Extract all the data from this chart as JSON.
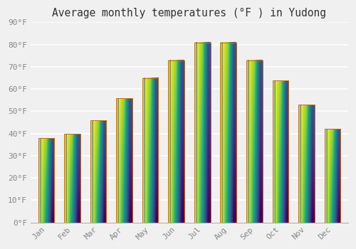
{
  "title": "Average monthly temperatures (°F ) in Yudong",
  "months": [
    "Jan",
    "Feb",
    "Mar",
    "Apr",
    "May",
    "Jun",
    "Jul",
    "Aug",
    "Sep",
    "Oct",
    "Nov",
    "Dec"
  ],
  "values": [
    38,
    40,
    46,
    56,
    65,
    73,
    81,
    81,
    73,
    64,
    53,
    42
  ],
  "ylim": [
    0,
    90
  ],
  "yticks": [
    0,
    10,
    20,
    30,
    40,
    50,
    60,
    70,
    80,
    90
  ],
  "ytick_labels": [
    "0°F",
    "10°F",
    "20°F",
    "30°F",
    "40°F",
    "50°F",
    "60°F",
    "70°F",
    "80°F",
    "90°F"
  ],
  "background_color": "#f0f0f0",
  "grid_color": "#ffffff",
  "bar_color_bottom": "#FFD040",
  "bar_color_mid": "#FFA800",
  "bar_color_top": "#F08000",
  "bar_edge_color": "#C87000",
  "bar_highlight": "#FFE860",
  "title_fontsize": 10.5,
  "tick_fontsize": 8,
  "font_family": "monospace"
}
